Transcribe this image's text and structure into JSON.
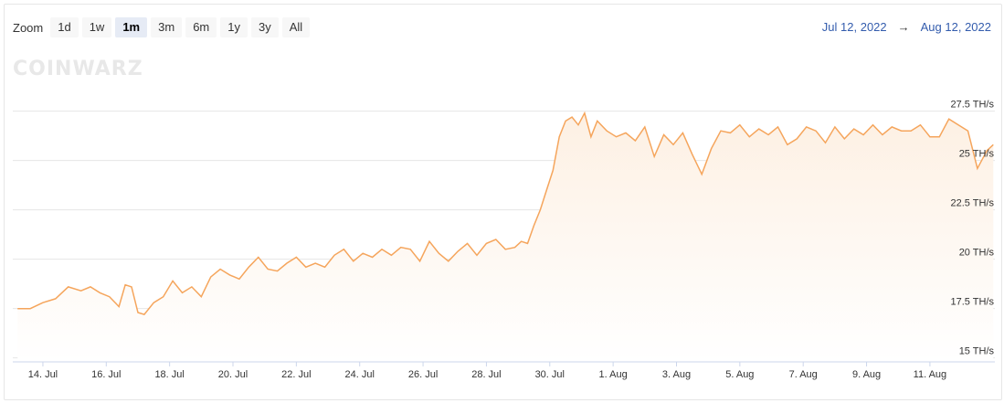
{
  "toolbar": {
    "zoom_label": "Zoom",
    "buttons": [
      "1d",
      "1w",
      "1m",
      "3m",
      "6m",
      "1y",
      "3y",
      "All"
    ],
    "active": "1m"
  },
  "range": {
    "from": "Jul 12, 2022",
    "arrow": "→",
    "to": "Aug 12, 2022"
  },
  "watermark": "COINWARZ",
  "colors": {
    "line": "#f5a55c",
    "area_top": "#fdf0e3",
    "grid": "#e6e6e6",
    "active_button": "#e6ebf5"
  },
  "chart_data": {
    "type": "area",
    "title": "",
    "xlabel": "",
    "ylabel": "",
    "x_ticks": [
      "14. Jul",
      "16. Jul",
      "18. Jul",
      "20. Jul",
      "22. Jul",
      "24. Jul",
      "26. Jul",
      "28. Jul",
      "30. Jul",
      "1. Aug",
      "3. Aug",
      "5. Aug",
      "7. Aug",
      "9. Aug",
      "11. Aug"
    ],
    "y_ticks": [
      "15 TH/s",
      "17.5 TH/s",
      "20 TH/s",
      "22.5 TH/s",
      "25 TH/s",
      "27.5 TH/s"
    ],
    "ylim": [
      14.8,
      28.5
    ],
    "x_unit": "days since Jul 13, 2022 00:00",
    "series": [
      {
        "x": [
          -0.8,
          -0.4,
          0.0,
          0.4,
          0.8,
          1.2,
          1.5,
          1.8,
          2.1,
          2.4,
          2.6,
          2.8,
          3.0,
          3.2,
          3.5,
          3.8,
          4.1,
          4.4,
          4.7,
          5.0,
          5.3,
          5.6,
          5.9,
          6.2,
          6.5,
          6.8,
          7.1,
          7.4,
          7.7,
          8.0,
          8.3,
          8.6,
          8.9,
          9.2,
          9.5,
          9.8,
          10.1,
          10.4,
          10.7,
          11.0,
          11.3,
          11.6,
          11.9,
          12.2,
          12.5,
          12.8,
          13.1,
          13.4,
          13.7,
          14.0,
          14.3,
          14.6,
          14.9,
          15.1,
          15.3,
          15.5,
          15.7,
          15.9,
          16.1,
          16.3,
          16.5,
          16.7,
          16.9,
          17.1,
          17.3,
          17.5,
          17.8,
          18.1,
          18.4,
          18.7,
          19.0,
          19.3,
          19.6,
          19.9,
          20.2,
          20.5,
          20.8,
          21.1,
          21.4,
          21.7,
          22.0,
          22.3,
          22.6,
          22.9,
          23.2,
          23.5,
          23.8,
          24.1,
          24.4,
          24.7,
          25.0,
          25.3,
          25.6,
          25.9,
          26.2,
          26.5,
          26.8,
          27.1,
          27.4,
          27.7,
          28.0,
          28.3,
          28.6,
          28.9,
          29.2,
          29.5,
          29.8,
          30.0
        ],
        "values": [
          17.5,
          17.5,
          17.8,
          18.0,
          18.6,
          18.4,
          18.6,
          18.3,
          18.1,
          17.6,
          18.7,
          18.6,
          17.3,
          17.2,
          17.8,
          18.1,
          18.9,
          18.3,
          18.6,
          18.1,
          19.1,
          19.5,
          19.2,
          19.0,
          19.6,
          20.1,
          19.5,
          19.4,
          19.8,
          20.1,
          19.6,
          19.8,
          19.6,
          20.2,
          20.5,
          19.9,
          20.3,
          20.1,
          20.5,
          20.2,
          20.6,
          20.5,
          19.9,
          20.9,
          20.3,
          19.9,
          20.4,
          20.8,
          20.2,
          20.8,
          21.0,
          20.5,
          20.6,
          20.9,
          20.8,
          21.7,
          22.5,
          23.5,
          24.5,
          26.2,
          27.0,
          27.2,
          26.8,
          27.4,
          26.2,
          27.0,
          26.5,
          26.2,
          26.4,
          26.0,
          26.7,
          25.2,
          26.3,
          25.8,
          26.4,
          25.3,
          24.3,
          25.6,
          26.5,
          26.4,
          26.8,
          26.2,
          26.6,
          26.3,
          26.7,
          25.8,
          26.1,
          26.7,
          26.5,
          25.9,
          26.7,
          26.1,
          26.6,
          26.3,
          26.8,
          26.3,
          26.7,
          26.5,
          26.5,
          26.8,
          26.2,
          26.2,
          27.1,
          26.8,
          26.5,
          24.6,
          25.5,
          25.8
        ]
      }
    ]
  }
}
